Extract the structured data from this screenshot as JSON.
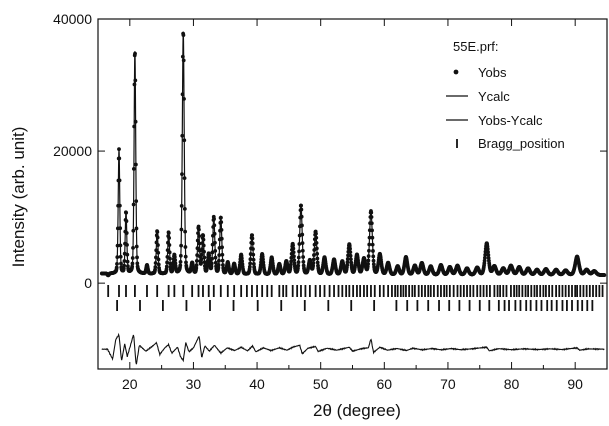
{
  "chart_data": {
    "type": "line",
    "legend_title": "55E.prf:",
    "legend_placement": "top-right",
    "xlabel": "2θ (degree)",
    "ylabel": "Intensity (arb. unit)",
    "xlim": [
      15,
      95
    ],
    "ylim": [
      -13000,
      40000
    ],
    "x_ticks": [
      20,
      30,
      40,
      50,
      60,
      70,
      80,
      90
    ],
    "y_ticks": [
      0,
      20000,
      40000
    ],
    "x_tick_labels": [
      "20",
      "30",
      "40",
      "50",
      "60",
      "70",
      "80",
      "90"
    ],
    "y_tick_labels": [
      "0",
      "20000",
      "40000"
    ],
    "grid": false,
    "series": [
      {
        "name": "Yobs",
        "style": "points"
      },
      {
        "name": "Ycalc",
        "style": "line"
      },
      {
        "name": "Yobs-Ycalc",
        "style": "line"
      },
      {
        "name": "Bragg_position",
        "style": "ticks"
      }
    ],
    "background": 1200,
    "peaks": [
      {
        "x": 16.6,
        "y": 900
      },
      {
        "x": 18.3,
        "y": 20000
      },
      {
        "x": 19.4,
        "y": 10500
      },
      {
        "x": 20.8,
        "y": 35000
      },
      {
        "x": 22.7,
        "y": 2500
      },
      {
        "x": 24.3,
        "y": 7700
      },
      {
        "x": 26.1,
        "y": 7500
      },
      {
        "x": 27.0,
        "y": 4000
      },
      {
        "x": 28.4,
        "y": 38000
      },
      {
        "x": 29.8,
        "y": 2800
      },
      {
        "x": 30.8,
        "y": 8300
      },
      {
        "x": 31.5,
        "y": 7000
      },
      {
        "x": 32.4,
        "y": 4200
      },
      {
        "x": 33.2,
        "y": 9800
      },
      {
        "x": 34.3,
        "y": 9800
      },
      {
        "x": 35.4,
        "y": 3000
      },
      {
        "x": 36.4,
        "y": 2800
      },
      {
        "x": 37.5,
        "y": 4200
      },
      {
        "x": 39.2,
        "y": 7200
      },
      {
        "x": 40.8,
        "y": 4300
      },
      {
        "x": 42.3,
        "y": 3800
      },
      {
        "x": 43.5,
        "y": 2800
      },
      {
        "x": 44.6,
        "y": 3200
      },
      {
        "x": 45.6,
        "y": 5800
      },
      {
        "x": 46.9,
        "y": 11700
      },
      {
        "x": 48.3,
        "y": 3300
      },
      {
        "x": 49.2,
        "y": 7700
      },
      {
        "x": 50.6,
        "y": 3800
      },
      {
        "x": 52.1,
        "y": 3500
      },
      {
        "x": 53.4,
        "y": 3200
      },
      {
        "x": 54.5,
        "y": 5800
      },
      {
        "x": 55.7,
        "y": 4200
      },
      {
        "x": 56.8,
        "y": 3600
      },
      {
        "x": 57.9,
        "y": 10800
      },
      {
        "x": 59.3,
        "y": 4300
      },
      {
        "x": 60.6,
        "y": 3000
      },
      {
        "x": 62.1,
        "y": 2500
      },
      {
        "x": 63.4,
        "y": 3900
      },
      {
        "x": 64.8,
        "y": 2600
      },
      {
        "x": 65.9,
        "y": 3000
      },
      {
        "x": 67.3,
        "y": 2500
      },
      {
        "x": 68.9,
        "y": 2700
      },
      {
        "x": 70.3,
        "y": 2400
      },
      {
        "x": 71.5,
        "y": 2600
      },
      {
        "x": 73.0,
        "y": 2200
      },
      {
        "x": 74.6,
        "y": 2300
      },
      {
        "x": 76.1,
        "y": 6000
      },
      {
        "x": 77.3,
        "y": 2500
      },
      {
        "x": 78.7,
        "y": 2200
      },
      {
        "x": 79.9,
        "y": 2600
      },
      {
        "x": 81.2,
        "y": 2400
      },
      {
        "x": 82.6,
        "y": 2200
      },
      {
        "x": 84.0,
        "y": 2000
      },
      {
        "x": 85.4,
        "y": 2100
      },
      {
        "x": 87.0,
        "y": 2000
      },
      {
        "x": 88.5,
        "y": 1900
      },
      {
        "x": 90.3,
        "y": 4000
      },
      {
        "x": 91.8,
        "y": 2000
      },
      {
        "x": 93.0,
        "y": 1800
      }
    ],
    "bragg_row1": [
      16.6,
      18.3,
      19.4,
      20.8,
      22.7,
      24.3,
      26.1,
      27.0,
      28.4,
      29.8,
      30.8,
      31.5,
      32.4,
      33.2,
      34.3,
      35.4,
      36.4,
      37.5,
      38.4,
      39.2,
      40.0,
      40.8,
      41.6,
      42.3,
      43.5,
      44.1,
      44.6,
      45.6,
      46.3,
      46.9,
      47.6,
      48.3,
      49.2,
      49.9,
      50.6,
      51.4,
      52.1,
      52.8,
      53.4,
      54.0,
      54.5,
      55.1,
      55.7,
      56.2,
      56.8,
      57.3,
      57.9,
      58.5,
      59.3,
      59.9,
      60.6,
      61.2,
      61.7,
      62.1,
      62.6,
      63.0,
      63.4,
      63.9,
      64.4,
      64.8,
      65.4,
      65.9,
      66.4,
      66.9,
      67.3,
      67.8,
      68.4,
      68.9,
      69.4,
      69.8,
      70.3,
      70.9,
      71.5,
      72.0,
      72.5,
      73.0,
      73.5,
      74.0,
      74.6,
      75.1,
      75.6,
      76.1,
      76.6,
      77.3,
      77.8,
      78.2,
      78.7,
      79.2,
      79.9,
      80.4,
      80.8,
      81.2,
      81.7,
      82.2,
      82.6,
      83.1,
      83.6,
      84.0,
      84.5,
      85.0,
      85.4,
      85.9,
      86.4,
      87.0,
      87.5,
      88.0,
      88.5,
      89.0,
      89.5,
      90.0,
      90.3,
      90.8,
      91.3,
      91.8,
      92.3,
      92.8,
      93.3,
      93.8,
      94.3
    ],
    "bragg_row2": [
      18.0,
      21.6,
      25.2,
      28.9,
      32.6,
      36.3,
      40.1,
      43.8,
      47.5,
      51.2,
      54.8,
      58.4,
      61.9,
      63.6,
      65.2,
      66.9,
      68.6,
      70.2,
      71.8,
      73.4,
      75.0,
      76.5,
      78.0,
      78.9,
      79.6,
      80.6,
      81.4,
      82.3,
      83.0,
      83.9,
      84.7,
      85.6,
      86.3,
      87.1,
      88.0,
      88.7,
      89.5,
      90.4,
      91.1,
      91.9,
      92.7
    ],
    "residual": [
      [
        15,
        0
      ],
      [
        16.5,
        0
      ],
      [
        17.3,
        -1500
      ],
      [
        17.8,
        1500
      ],
      [
        18.3,
        2200
      ],
      [
        18.7,
        -1800
      ],
      [
        19.2,
        800
      ],
      [
        19.6,
        -1100
      ],
      [
        20.2,
        900
      ],
      [
        20.6,
        2300
      ],
      [
        21.0,
        -2500
      ],
      [
        21.5,
        600
      ],
      [
        22.5,
        -300
      ],
      [
        23.5,
        400
      ],
      [
        24.2,
        1000
      ],
      [
        24.7,
        -800
      ],
      [
        25.5,
        200
      ],
      [
        26.1,
        700
      ],
      [
        26.6,
        -600
      ],
      [
        27.5,
        300
      ],
      [
        28.0,
        -1200
      ],
      [
        28.4,
        -1700
      ],
      [
        28.8,
        1000
      ],
      [
        29.3,
        -400
      ],
      [
        30.0,
        200
      ],
      [
        30.9,
        2000
      ],
      [
        31.3,
        -1300
      ],
      [
        31.8,
        500
      ],
      [
        32.5,
        -300
      ],
      [
        33.3,
        600
      ],
      [
        34.3,
        -600
      ],
      [
        35.3,
        200
      ],
      [
        36.5,
        -200
      ],
      [
        37.5,
        300
      ],
      [
        38.5,
        -250
      ],
      [
        39.3,
        500
      ],
      [
        39.8,
        -400
      ],
      [
        41.0,
        200
      ],
      [
        42.2,
        -200
      ],
      [
        43.5,
        200
      ],
      [
        44.7,
        -150
      ],
      [
        45.6,
        300
      ],
      [
        46.7,
        600
      ],
      [
        47.1,
        -700
      ],
      [
        48.0,
        150
      ],
      [
        49.2,
        400
      ],
      [
        49.6,
        -350
      ],
      [
        51.0,
        150
      ],
      [
        52.5,
        -150
      ],
      [
        54.5,
        300
      ],
      [
        55.0,
        -300
      ],
      [
        56.5,
        100
      ],
      [
        57.5,
        200
      ],
      [
        57.9,
        1600
      ],
      [
        58.3,
        -500
      ],
      [
        59.3,
        300
      ],
      [
        60.5,
        -150
      ],
      [
        62.0,
        100
      ],
      [
        63.5,
        -200
      ],
      [
        64.5,
        150
      ],
      [
        66.0,
        -100
      ],
      [
        67.5,
        100
      ],
      [
        69.0,
        -100
      ],
      [
        70.5,
        100
      ],
      [
        72.0,
        -80
      ],
      [
        74.0,
        80
      ],
      [
        76.1,
        300
      ],
      [
        76.5,
        -250
      ],
      [
        78.0,
        80
      ],
      [
        80.0,
        -80
      ],
      [
        82.0,
        60
      ],
      [
        84.0,
        -60
      ],
      [
        86.0,
        50
      ],
      [
        88.0,
        -50
      ],
      [
        90.3,
        200
      ],
      [
        90.7,
        -150
      ],
      [
        92.0,
        40
      ],
      [
        95,
        0
      ]
    ],
    "residual_offset": -10000
  }
}
